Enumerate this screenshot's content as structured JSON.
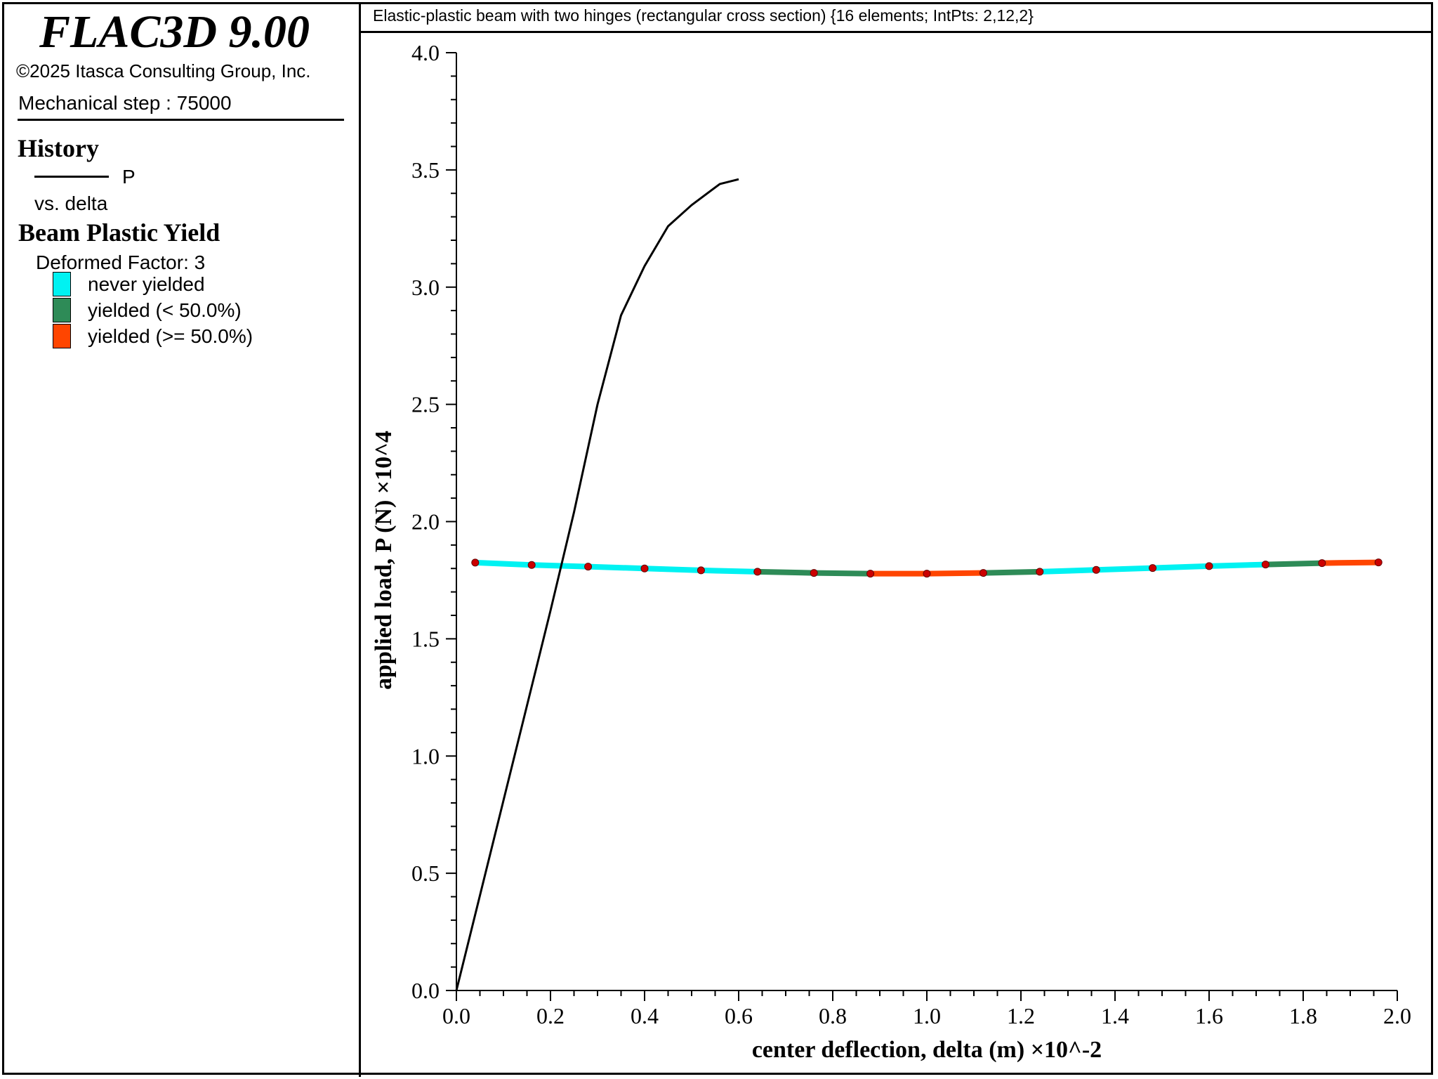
{
  "app": {
    "title": "FLAC3D 9.00",
    "copyright": "©2025 Itasca Consulting Group, Inc.",
    "step": "Mechanical step : 75000"
  },
  "plot_title": "Elastic-plastic beam with two hinges (rectangular cross section) {16 elements; IntPts: 2,12,2}",
  "legend": {
    "history_heading": "History",
    "history_series": "P",
    "history_vs": "vs. delta",
    "beam_heading": "Beam Plastic Yield",
    "deformed_factor": "Deformed Factor: 3",
    "items": [
      {
        "label": "never yielded",
        "color": "#00f2f2"
      },
      {
        "label": "yielded (< 50.0%)",
        "color": "#2e8b57"
      },
      {
        "label": "yielded (>= 50.0%)",
        "color": "#ff4500"
      }
    ]
  },
  "chart_data": {
    "type": "line",
    "xlabel": "center deflection, delta (m) ×10^-2",
    "ylabel": "applied load, P (N) ×10^4",
    "xlim": [
      0.0,
      2.0
    ],
    "ylim": [
      0.0,
      4.0
    ],
    "x_ticks": [
      "0.0",
      "0.2",
      "0.4",
      "0.6",
      "0.8",
      "1.0",
      "1.2",
      "1.4",
      "1.6",
      "1.8",
      "2.0"
    ],
    "y_ticks": [
      "0.0",
      "0.5",
      "1.0",
      "1.5",
      "2.0",
      "2.5",
      "3.0",
      "3.5",
      "4.0"
    ],
    "series": [
      {
        "name": "P",
        "color": "#000000",
        "x": [
          0.0,
          0.1,
          0.2,
          0.25,
          0.3,
          0.35,
          0.4,
          0.45,
          0.5,
          0.56,
          0.6
        ],
        "y": [
          0.0,
          0.81,
          1.62,
          2.04,
          2.5,
          2.88,
          3.09,
          3.26,
          3.35,
          3.44,
          3.46
        ]
      }
    ],
    "beam": {
      "nodes_x": [
        0.04,
        0.16,
        0.28,
        0.4,
        0.52,
        0.64,
        0.76,
        0.88,
        1.0,
        1.12,
        1.24,
        1.36,
        1.48,
        1.6,
        1.72,
        1.84,
        1.96
      ],
      "nodes_y": [
        1.825,
        1.815,
        1.808,
        1.8,
        1.792,
        1.786,
        1.781,
        1.778,
        1.778,
        1.781,
        1.786,
        1.794,
        1.802,
        1.81,
        1.817,
        1.823,
        1.826
      ],
      "segment_states": [
        "never",
        "never",
        "never",
        "never",
        "never",
        "lt50",
        "lt50",
        "ge50",
        "ge50",
        "lt50",
        "never",
        "never",
        "never",
        "never",
        "lt50",
        "ge50"
      ],
      "node_color": "#cc0000"
    }
  }
}
